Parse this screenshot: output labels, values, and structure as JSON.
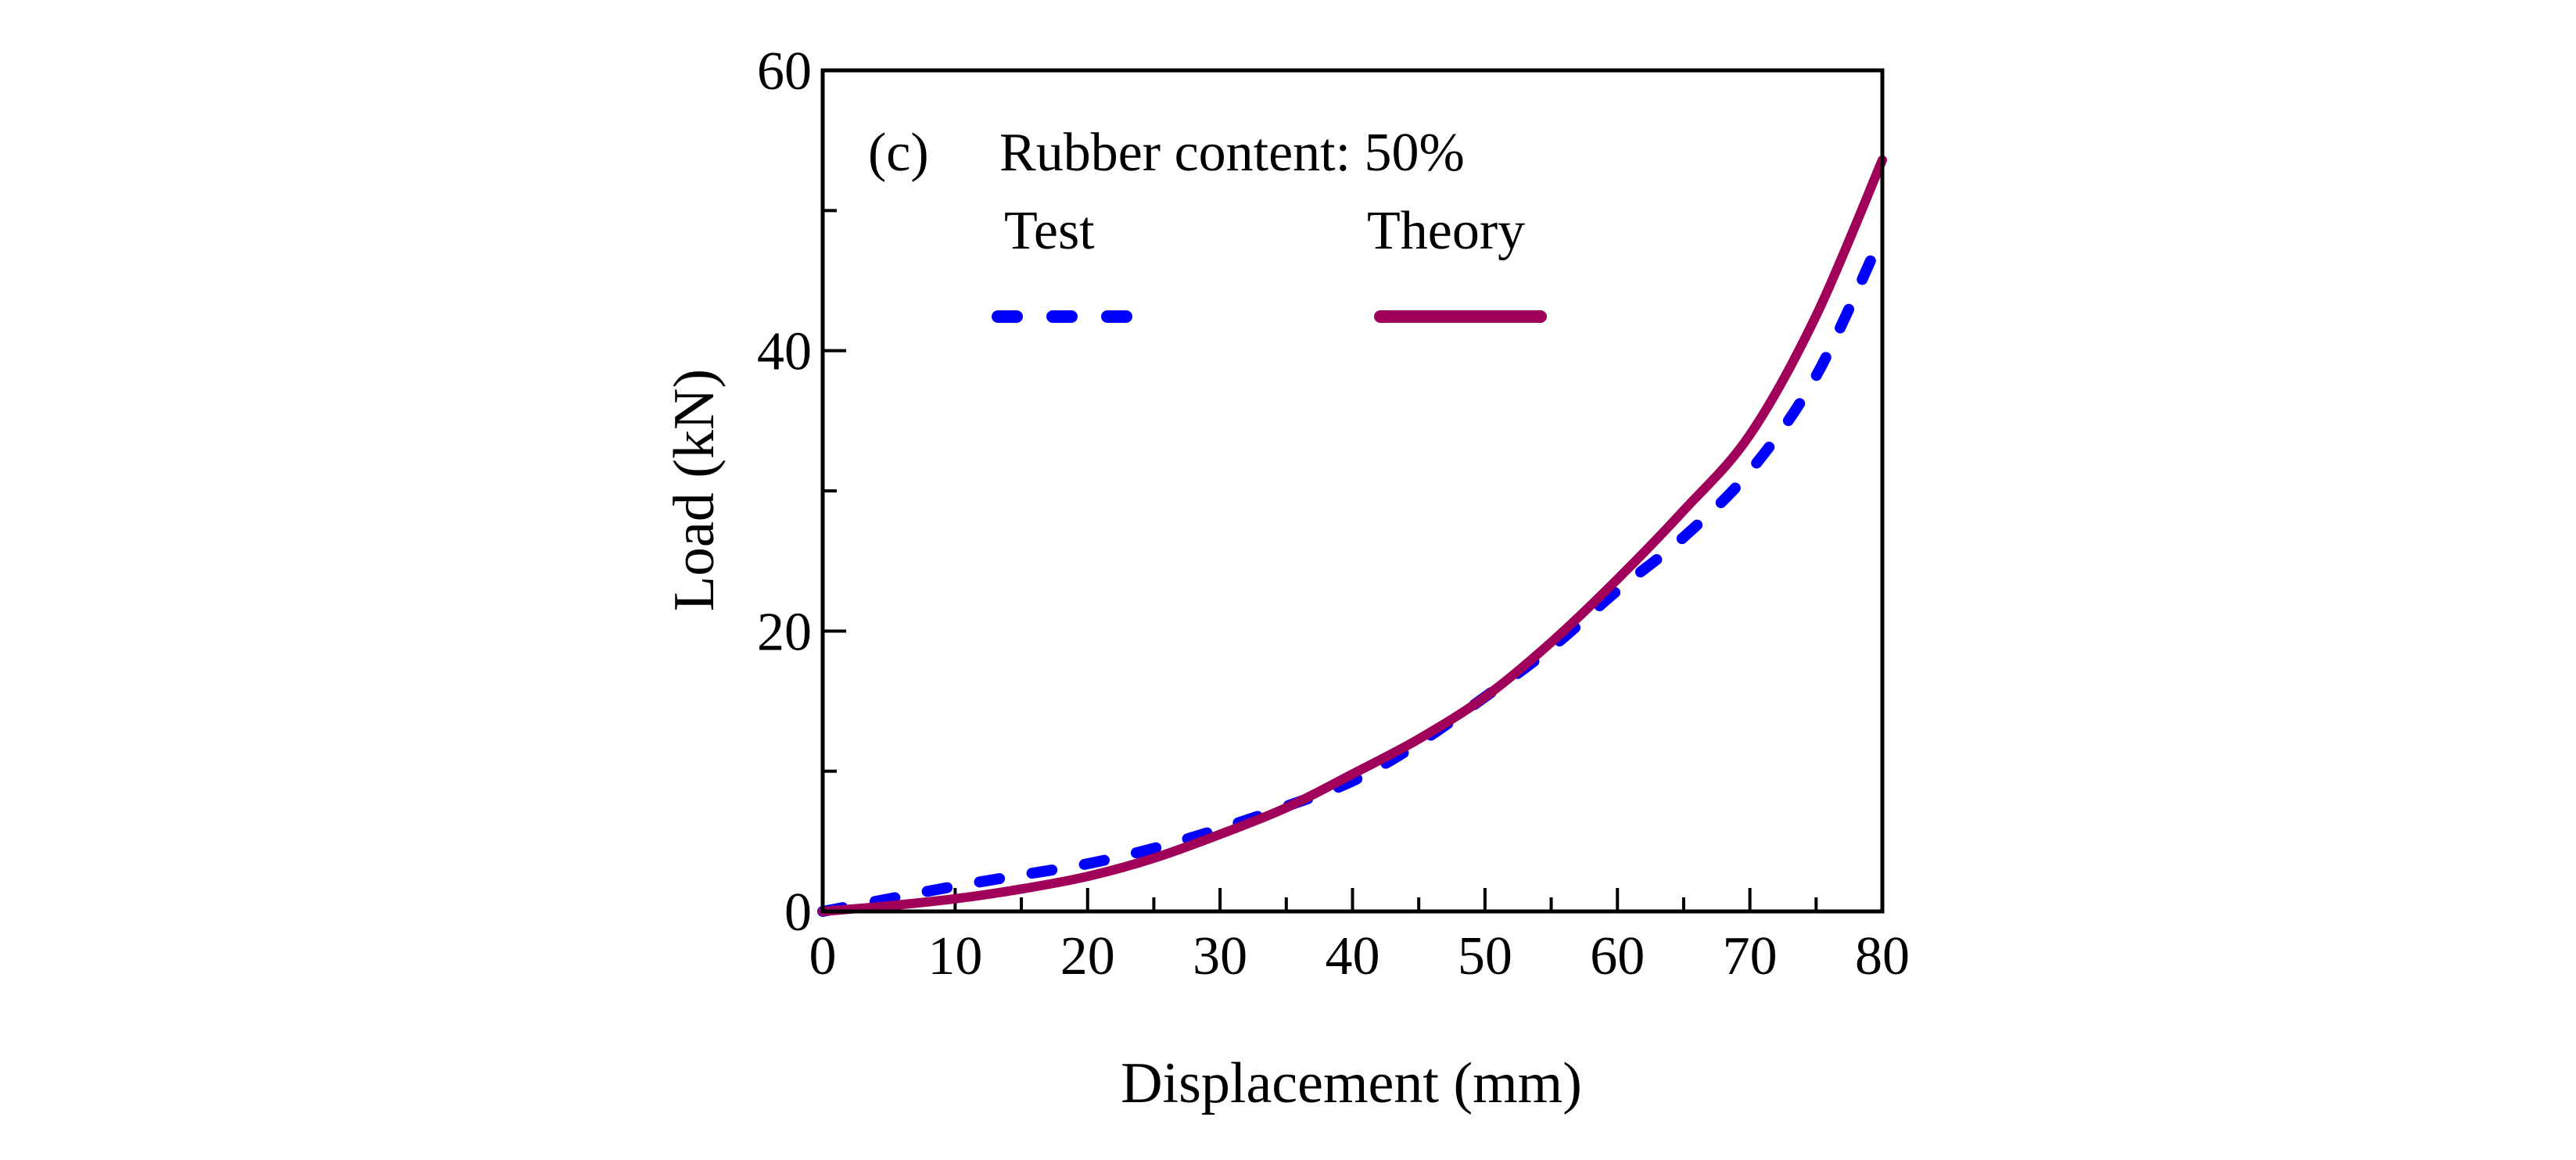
{
  "chart_data": {
    "type": "line",
    "title": "",
    "panel_label": "(c)",
    "annotation": "Rubber content: 50%",
    "xlabel": "Displacement (mm)",
    "ylabel": "Load (kN)",
    "xlim": [
      0,
      80
    ],
    "ylim": [
      0,
      60
    ],
    "xticks": [
      0,
      10,
      20,
      30,
      40,
      50,
      60,
      70,
      80
    ],
    "yticks": [
      0,
      20,
      40,
      60
    ],
    "grid": false,
    "legend_placement": "top-left",
    "series": [
      {
        "name": "Test",
        "style": "dashed",
        "color": "#0000FF",
        "x": [
          0,
          5,
          10,
          15,
          20,
          25,
          30,
          35,
          40,
          45,
          50,
          55,
          60,
          65,
          70,
          75,
          80
        ],
        "y": [
          0,
          0.9,
          1.8,
          2.6,
          3.4,
          4.5,
          5.9,
          7.5,
          9.3,
          12.0,
          15.3,
          18.8,
          22.9,
          26.7,
          31.4,
          38.2,
          48.3
        ]
      },
      {
        "name": "Theory",
        "style": "solid",
        "color": "#A0005A",
        "x": [
          0,
          5,
          10,
          15,
          20,
          25,
          30,
          35,
          40,
          45,
          50,
          55,
          60,
          65,
          70,
          75,
          80
        ],
        "y": [
          0,
          0.4,
          0.9,
          1.6,
          2.5,
          3.8,
          5.5,
          7.4,
          9.8,
          12.3,
          15.3,
          19.2,
          23.7,
          28.6,
          34.0,
          42.5,
          53.6
        ]
      }
    ]
  }
}
